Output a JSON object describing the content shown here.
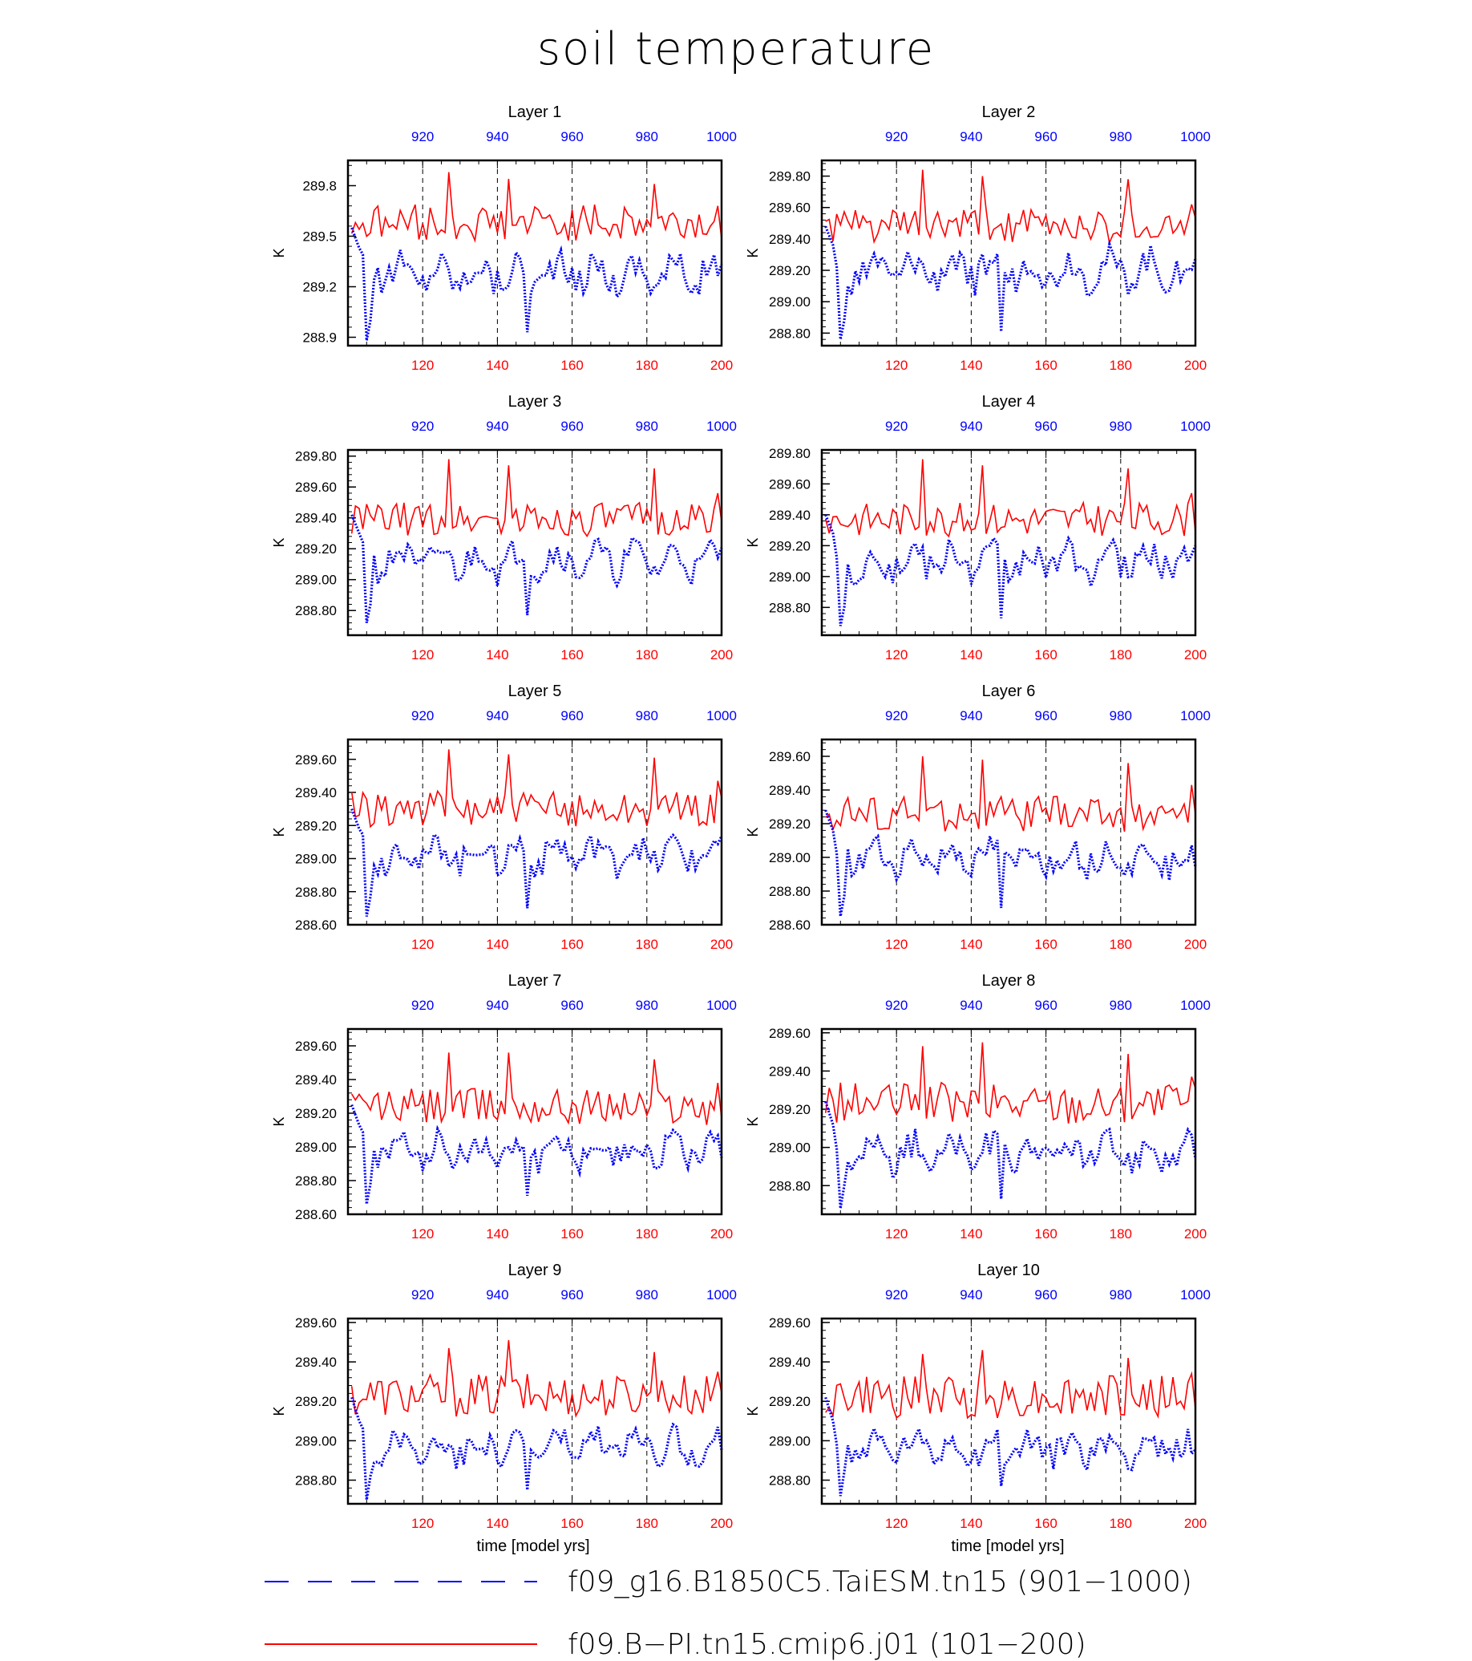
{
  "figure": {
    "title": "soil temperature",
    "xlabel": "time [model yrs]"
  },
  "legend": {
    "items": [
      {
        "label": "f09_g16.B1850C5.TaiESM.tn15 (901−1000)",
        "color": "#0000ff",
        "style": "dashed"
      },
      {
        "label": "f09.B−PI.tn15.cmip6.j01 (101−200)",
        "color": "#ff0000",
        "style": "solid"
      }
    ]
  },
  "chart_data": [
    {
      "type": "line",
      "title": "Layer 1",
      "ylabel": "K",
      "ylim": [
        288.85,
        289.95
      ],
      "yticks": [
        288.9,
        289.2,
        289.5,
        289.8
      ],
      "ytick_decimals": 1,
      "x_bottom": {
        "range": [
          100,
          200
        ],
        "ticks": [
          120,
          140,
          160,
          180,
          200
        ],
        "color": "#ff0000"
      },
      "x_top": {
        "range": [
          900,
          1000
        ],
        "ticks": [
          920,
          940,
          960,
          980,
          1000
        ],
        "color": "#0000ff"
      },
      "vlines": [
        120,
        140,
        160,
        180
      ],
      "series": [
        {
          "name": "f09.B−PI.tn15.cmip6.j01 (101−200)",
          "axis": "bottom",
          "color": "#ff0000",
          "offset": 0.3,
          "peaks": [
            [
              127,
              0.42
            ],
            [
              143,
              0.38
            ],
            [
              182,
              0.35
            ],
            [
              199,
              0.22
            ]
          ]
        },
        {
          "name": "f09_g16.B1850C5.TaiESM.tn15 (901−1000)",
          "axis": "top",
          "color": "#0000ff",
          "mean": 289.28,
          "amp": 0.13,
          "start": 289.55,
          "dip": 288.88
        }
      ]
    },
    {
      "type": "line",
      "title": "Layer 2",
      "ylabel": "K",
      "ylim": [
        288.72,
        289.9
      ],
      "yticks": [
        288.8,
        289.0,
        289.2,
        289.4,
        289.6,
        289.8
      ],
      "ytick_decimals": 2,
      "x_bottom": {
        "range": [
          100,
          200
        ],
        "ticks": [
          120,
          140,
          160,
          180,
          200
        ],
        "color": "#ff0000"
      },
      "x_top": {
        "range": [
          900,
          1000
        ],
        "ticks": [
          920,
          940,
          960,
          980,
          1000
        ],
        "color": "#0000ff"
      },
      "vlines": [
        120,
        140,
        160,
        180
      ],
      "series": [
        {
          "name": "f09.B−PI.tn15.cmip6.j01 (101−200)",
          "axis": "bottom",
          "color": "#ff0000",
          "offset": 0.28,
          "peaks": [
            [
              127,
              0.46
            ],
            [
              143,
              0.42
            ],
            [
              182,
              0.4
            ],
            [
              199,
              0.24
            ]
          ]
        },
        {
          "name": "f09_g16.B1850C5.TaiESM.tn15 (901−1000)",
          "axis": "top",
          "color": "#0000ff",
          "mean": 289.2,
          "amp": 0.14,
          "start": 289.48,
          "dip": 288.76
        }
      ]
    },
    {
      "type": "line",
      "title": "Layer 3",
      "ylabel": "K",
      "ylim": [
        288.64,
        289.84
      ],
      "yticks": [
        288.8,
        289.0,
        289.2,
        289.4,
        289.6,
        289.8
      ],
      "ytick_decimals": 2,
      "x_bottom": {
        "range": [
          100,
          200
        ],
        "ticks": [
          120,
          140,
          160,
          180,
          200
        ],
        "color": "#ff0000"
      },
      "x_top": {
        "range": [
          900,
          1000
        ],
        "ticks": [
          920,
          940,
          960,
          980,
          1000
        ],
        "color": "#0000ff"
      },
      "vlines": [
        120,
        140,
        160,
        180
      ],
      "series": [
        {
          "name": "f09.B−PI.tn15.cmip6.j01 (101−200)",
          "axis": "bottom",
          "color": "#ff0000",
          "offset": 0.27,
          "peaks": [
            [
              127,
              0.48
            ],
            [
              143,
              0.44
            ],
            [
              182,
              0.42
            ],
            [
              199,
              0.26
            ]
          ]
        },
        {
          "name": "f09_g16.B1850C5.TaiESM.tn15 (901−1000)",
          "axis": "top",
          "color": "#0000ff",
          "mean": 289.12,
          "amp": 0.14,
          "start": 289.42,
          "dip": 288.72
        }
      ]
    },
    {
      "type": "line",
      "title": "Layer 4",
      "ylabel": "K",
      "ylim": [
        288.62,
        289.82
      ],
      "yticks": [
        288.8,
        289.0,
        289.2,
        289.4,
        289.6,
        289.8
      ],
      "ytick_decimals": 2,
      "x_bottom": {
        "range": [
          100,
          200
        ],
        "ticks": [
          120,
          140,
          160,
          180,
          200
        ],
        "color": "#ff0000"
      },
      "x_top": {
        "range": [
          900,
          1000
        ],
        "ticks": [
          920,
          940,
          960,
          980,
          1000
        ],
        "color": "#0000ff"
      },
      "vlines": [
        120,
        140,
        160,
        180
      ],
      "series": [
        {
          "name": "f09.B−PI.tn15.cmip6.j01 (101−200)",
          "axis": "bottom",
          "color": "#ff0000",
          "offset": 0.27,
          "peaks": [
            [
              127,
              0.48
            ],
            [
              143,
              0.44
            ],
            [
              182,
              0.42
            ],
            [
              199,
              0.26
            ]
          ]
        },
        {
          "name": "f09_g16.B1850C5.TaiESM.tn15 (901−1000)",
          "axis": "top",
          "color": "#0000ff",
          "mean": 289.1,
          "amp": 0.14,
          "start": 289.4,
          "dip": 288.68
        }
      ]
    },
    {
      "type": "line",
      "title": "Layer 5",
      "ylabel": "K",
      "ylim": [
        288.6,
        289.72
      ],
      "yticks": [
        288.6,
        288.8,
        289.0,
        289.2,
        289.4,
        289.6
      ],
      "ytick_decimals": 2,
      "x_bottom": {
        "range": [
          100,
          200
        ],
        "ticks": [
          120,
          140,
          160,
          180,
          200
        ],
        "color": "#ff0000"
      },
      "x_top": {
        "range": [
          900,
          1000
        ],
        "ticks": [
          920,
          940,
          960,
          980,
          1000
        ],
        "color": "#0000ff"
      },
      "vlines": [
        120,
        140,
        160,
        180
      ],
      "series": [
        {
          "name": "f09.B−PI.tn15.cmip6.j01 (101−200)",
          "axis": "bottom",
          "color": "#ff0000",
          "offset": 0.27,
          "peaks": [
            [
              127,
              0.45
            ],
            [
              143,
              0.42
            ],
            [
              182,
              0.4
            ],
            [
              199,
              0.26
            ]
          ]
        },
        {
          "name": "f09_g16.B1850C5.TaiESM.tn15 (901−1000)",
          "axis": "top",
          "color": "#0000ff",
          "mean": 289.03,
          "amp": 0.13,
          "start": 289.3,
          "dip": 288.65
        }
      ]
    },
    {
      "type": "line",
      "title": "Layer 6",
      "ylabel": "K",
      "ylim": [
        288.6,
        289.7
      ],
      "yticks": [
        288.6,
        288.8,
        289.0,
        289.2,
        289.4,
        289.6
      ],
      "ytick_decimals": 2,
      "x_bottom": {
        "range": [
          100,
          200
        ],
        "ticks": [
          120,
          140,
          160,
          180,
          200
        ],
        "color": "#ff0000"
      },
      "x_top": {
        "range": [
          900,
          1000
        ],
        "ticks": [
          920,
          940,
          960,
          980,
          1000
        ],
        "color": "#0000ff"
      },
      "vlines": [
        120,
        140,
        160,
        180
      ],
      "series": [
        {
          "name": "f09.B−PI.tn15.cmip6.j01 (101−200)",
          "axis": "bottom",
          "color": "#ff0000",
          "offset": 0.26,
          "peaks": [
            [
              127,
              0.42
            ],
            [
              143,
              0.4
            ],
            [
              182,
              0.38
            ],
            [
              199,
              0.25
            ]
          ]
        },
        {
          "name": "f09_g16.B1850C5.TaiESM.tn15 (901−1000)",
          "axis": "top",
          "color": "#0000ff",
          "mean": 289.0,
          "amp": 0.12,
          "start": 289.28,
          "dip": 288.65
        }
      ]
    },
    {
      "type": "line",
      "title": "Layer 7",
      "ylabel": "K",
      "ylim": [
        288.6,
        289.7
      ],
      "yticks": [
        288.6,
        288.8,
        289.0,
        289.2,
        289.4,
        289.6
      ],
      "ytick_decimals": 2,
      "x_bottom": {
        "range": [
          100,
          200
        ],
        "ticks": [
          120,
          140,
          160,
          180,
          200
        ],
        "color": "#ff0000"
      },
      "x_top": {
        "range": [
          900,
          1000
        ],
        "ticks": [
          920,
          940,
          960,
          980,
          1000
        ],
        "color": "#0000ff"
      },
      "vlines": [
        120,
        140,
        160,
        180
      ],
      "series": [
        {
          "name": "f09.B−PI.tn15.cmip6.j01 (101−200)",
          "axis": "bottom",
          "color": "#ff0000",
          "offset": 0.26,
          "peaks": [
            [
              127,
              0.4
            ],
            [
              143,
              0.4
            ],
            [
              182,
              0.36
            ],
            [
              199,
              0.22
            ]
          ]
        },
        {
          "name": "f09_g16.B1850C5.TaiESM.tn15 (901−1000)",
          "axis": "top",
          "color": "#0000ff",
          "mean": 288.98,
          "amp": 0.12,
          "start": 289.25,
          "dip": 288.66
        }
      ]
    },
    {
      "type": "line",
      "title": "Layer 8",
      "ylabel": "K",
      "ylim": [
        288.65,
        289.62
      ],
      "yticks": [
        288.8,
        289.0,
        289.2,
        289.4,
        289.6
      ],
      "ytick_decimals": 2,
      "x_bottom": {
        "range": [
          100,
          200
        ],
        "ticks": [
          120,
          140,
          160,
          180,
          200
        ],
        "color": "#ff0000"
      },
      "x_top": {
        "range": [
          900,
          1000
        ],
        "ticks": [
          920,
          940,
          960,
          980,
          1000
        ],
        "color": "#0000ff"
      },
      "vlines": [
        120,
        140,
        160,
        180
      ],
      "series": [
        {
          "name": "f09.B−PI.tn15.cmip6.j01 (101−200)",
          "axis": "bottom",
          "color": "#ff0000",
          "offset": 0.26,
          "peaks": [
            [
              127,
              0.38
            ],
            [
              143,
              0.4
            ],
            [
              182,
              0.34
            ],
            [
              199,
              0.22
            ]
          ]
        },
        {
          "name": "f09_g16.B1850C5.TaiESM.tn15 (901−1000)",
          "axis": "top",
          "color": "#0000ff",
          "mean": 288.97,
          "amp": 0.11,
          "start": 289.24,
          "dip": 288.68
        }
      ]
    },
    {
      "type": "line",
      "title": "Layer 9",
      "ylabel": "K",
      "ylim": [
        288.68,
        289.62
      ],
      "yticks": [
        288.8,
        289.0,
        289.2,
        289.4,
        289.6
      ],
      "ytick_decimals": 2,
      "x_bottom": {
        "range": [
          100,
          200
        ],
        "ticks": [
          120,
          140,
          160,
          180,
          200
        ],
        "color": "#ff0000"
      },
      "x_top": {
        "range": [
          900,
          1000
        ],
        "ticks": [
          920,
          940,
          960,
          980,
          1000
        ],
        "color": "#0000ff"
      },
      "vlines": [
        120,
        140,
        160,
        180
      ],
      "series": [
        {
          "name": "f09.B−PI.tn15.cmip6.j01 (101−200)",
          "axis": "bottom",
          "color": "#ff0000",
          "offset": 0.26,
          "peaks": [
            [
              127,
              0.32
            ],
            [
              143,
              0.36
            ],
            [
              182,
              0.3
            ],
            [
              199,
              0.2
            ]
          ]
        },
        {
          "name": "f09_g16.B1850C5.TaiESM.tn15 (901−1000)",
          "axis": "top",
          "color": "#0000ff",
          "mean": 288.97,
          "amp": 0.1,
          "start": 289.22,
          "dip": 288.7
        }
      ]
    },
    {
      "type": "line",
      "title": "Layer 10",
      "ylabel": "K",
      "ylim": [
        288.68,
        289.62
      ],
      "yticks": [
        288.8,
        289.0,
        289.2,
        289.4,
        289.6
      ],
      "ytick_decimals": 2,
      "x_bottom": {
        "range": [
          100,
          200
        ],
        "ticks": [
          120,
          140,
          160,
          180,
          200
        ],
        "color": "#ff0000"
      },
      "x_top": {
        "range": [
          900,
          1000
        ],
        "ticks": [
          920,
          940,
          960,
          980,
          1000
        ],
        "color": "#0000ff"
      },
      "vlines": [
        120,
        140,
        160,
        180
      ],
      "series": [
        {
          "name": "f09.B−PI.tn15.cmip6.j01 (101−200)",
          "axis": "bottom",
          "color": "#ff0000",
          "offset": 0.26,
          "peaks": [
            [
              127,
              0.3
            ],
            [
              143,
              0.32
            ],
            [
              182,
              0.28
            ],
            [
              199,
              0.2
            ]
          ]
        },
        {
          "name": "f09_g16.B1850C5.TaiESM.tn15 (901−1000)",
          "axis": "top",
          "color": "#0000ff",
          "mean": 288.96,
          "amp": 0.1,
          "start": 289.22,
          "dip": 288.72
        }
      ]
    }
  ]
}
